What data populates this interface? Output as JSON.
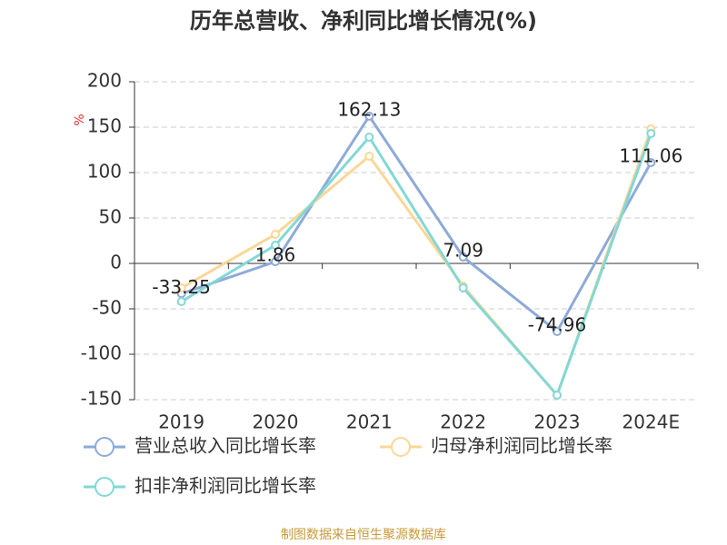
{
  "chart_data": {
    "type": "line",
    "title": "历年总营收、净利同比增长情况(%)",
    "y_label": "%",
    "categories": [
      "2019",
      "2020",
      "2021",
      "2022",
      "2023",
      "2024E"
    ],
    "series": [
      {
        "name": "营业总收入同比增长率",
        "color": "#8eaad9",
        "values": [
          -33.25,
          1.86,
          162.13,
          7.09,
          -74.96,
          111.06
        ],
        "show_labels": true
      },
      {
        "name": "归母净利润同比增长率",
        "color": "#fad797",
        "values": [
          -27,
          32,
          118,
          -25,
          -145,
          148
        ],
        "show_labels": false
      },
      {
        "name": "扣非净利润同比增长率",
        "color": "#82d8d5",
        "values": [
          -42,
          20,
          139,
          -27,
          -145,
          143
        ],
        "show_labels": false
      }
    ],
    "ylim": [
      -150,
      200
    ],
    "yticks": [
      -150,
      -100,
      -50,
      0,
      50,
      100,
      150,
      200
    ],
    "grid": true,
    "source": "制图数据来自恒生聚源数据库"
  }
}
